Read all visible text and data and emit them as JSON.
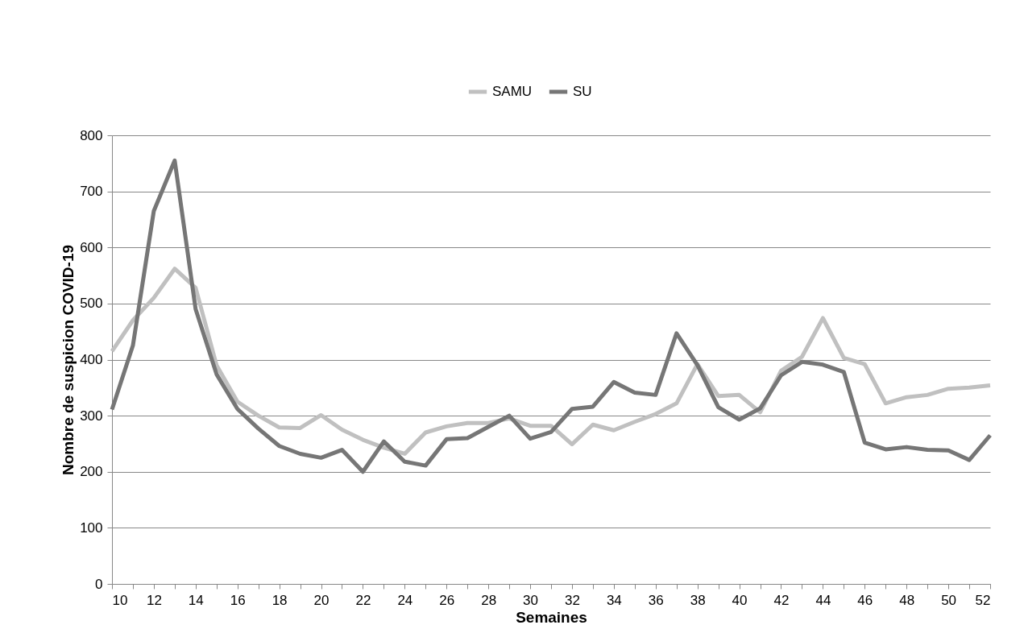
{
  "chart_data": {
    "type": "line",
    "xlabel": "Semaines",
    "ylabel": "Nombre de suspicion COVID-19",
    "x": [
      10,
      11,
      12,
      13,
      14,
      15,
      16,
      17,
      18,
      19,
      20,
      21,
      22,
      23,
      24,
      25,
      26,
      27,
      28,
      29,
      30,
      31,
      32,
      33,
      34,
      35,
      36,
      37,
      38,
      39,
      40,
      41,
      42,
      43,
      44,
      45,
      46,
      47,
      48,
      49,
      50,
      51,
      52
    ],
    "series": [
      {
        "name": "SAMU",
        "color": "#c0c0c0",
        "values": [
          415,
          470,
          510,
          562,
          528,
          390,
          325,
          300,
          279,
          278,
          301,
          275,
          257,
          243,
          232,
          270,
          281,
          287,
          287,
          295,
          282,
          282,
          249,
          284,
          274,
          289,
          303,
          322,
          392,
          335,
          337,
          306,
          380,
          405,
          474,
          403,
          392,
          322,
          333,
          337,
          348,
          350,
          354
        ]
      },
      {
        "name": "SU",
        "color": "#767676",
        "values": [
          311,
          425,
          665,
          755,
          490,
          374,
          312,
          277,
          246,
          232,
          225,
          239,
          200,
          254,
          218,
          211,
          258,
          260,
          280,
          300,
          259,
          271,
          312,
          316,
          360,
          341,
          337,
          447,
          390,
          315,
          293,
          313,
          372,
          396,
          391,
          378,
          252,
          240,
          244,
          239,
          238,
          221,
          265
        ]
      }
    ],
    "xlim": [
      10,
      52
    ],
    "xticks": [
      10,
      {
        "value": 11,
        "label": null
      },
      12,
      {
        "value": 13,
        "label": null
      },
      14,
      {
        "value": 15,
        "label": null
      },
      16,
      {
        "value": 17,
        "label": null
      },
      18,
      {
        "value": 19,
        "label": null
      },
      20,
      {
        "value": 21,
        "label": null
      },
      22,
      {
        "value": 23,
        "label": null
      },
      24,
      {
        "value": 25,
        "label": null
      },
      26,
      {
        "value": 27,
        "label": null
      },
      28,
      {
        "value": 29,
        "label": null
      },
      30,
      {
        "value": 31,
        "label": null
      },
      32,
      {
        "value": 33,
        "label": null
      },
      34,
      {
        "value": 35,
        "label": null
      },
      36,
      {
        "value": 37,
        "label": null
      },
      38,
      {
        "value": 39,
        "label": null
      },
      40,
      {
        "value": 41,
        "label": null
      },
      42,
      {
        "value": 43,
        "label": null
      },
      44,
      {
        "value": 45,
        "label": null
      },
      46,
      {
        "value": 47,
        "label": null
      },
      48,
      {
        "value": 49,
        "label": null
      },
      50,
      {
        "value": 51,
        "label": null
      },
      52
    ],
    "ylim": [
      0,
      800
    ],
    "yticks": [
      0,
      100,
      200,
      300,
      400,
      500,
      600,
      700,
      800
    ],
    "grid": "y",
    "legend": "top",
    "marker": "none",
    "line_style": "solid"
  }
}
